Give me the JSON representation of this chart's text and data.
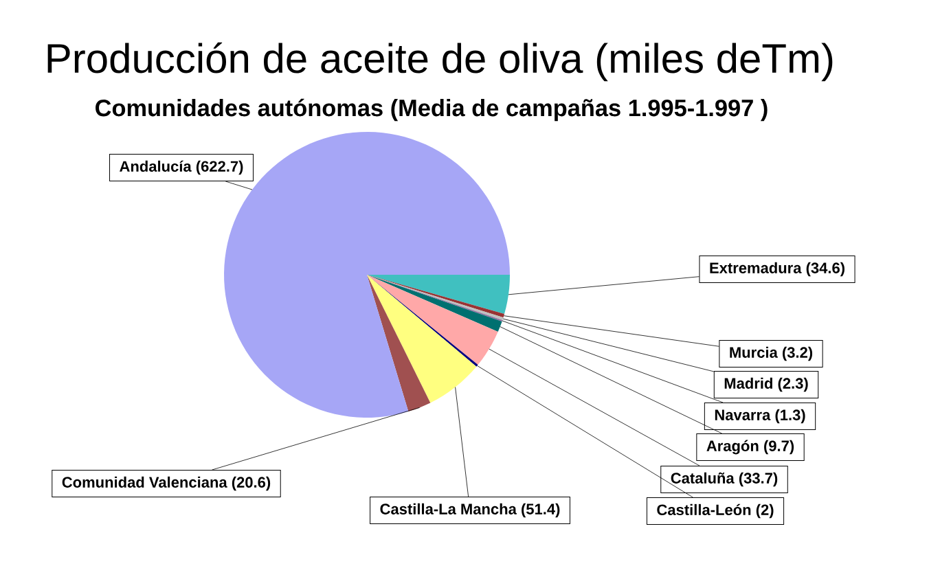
{
  "chart_data": {
    "type": "pie",
    "title": "Producción de aceite de oliva (miles deTm)",
    "subtitle": "Comunidades autónomas (Media de campañas 1.995-1.997 )",
    "categories": [
      "Extremadura",
      "Murcia",
      "Madrid",
      "Navarra",
      "Aragón",
      "Cataluña",
      "Castilla-León",
      "Castilla-La Mancha",
      "Comunidad Valenciana",
      "Andalucía"
    ],
    "values": [
      34.6,
      3.2,
      2.3,
      1.3,
      9.7,
      33.7,
      2,
      51.4,
      20.6,
      622.7
    ],
    "value_labels": [
      "(34.6)",
      "(3.2)",
      "(2.3)",
      "(1.3)",
      "(9.7)",
      "(33.7)",
      "(2)",
      "(51.4)",
      "(20.6)",
      "(622.7)"
    ],
    "colors": [
      "#40c0c0",
      "#993333",
      "#c0c0c0",
      "#9070a0",
      "#007070",
      "#ffa8a8",
      "#000080",
      "#ffff80",
      "#a05050",
      "#a6a6f6"
    ]
  }
}
